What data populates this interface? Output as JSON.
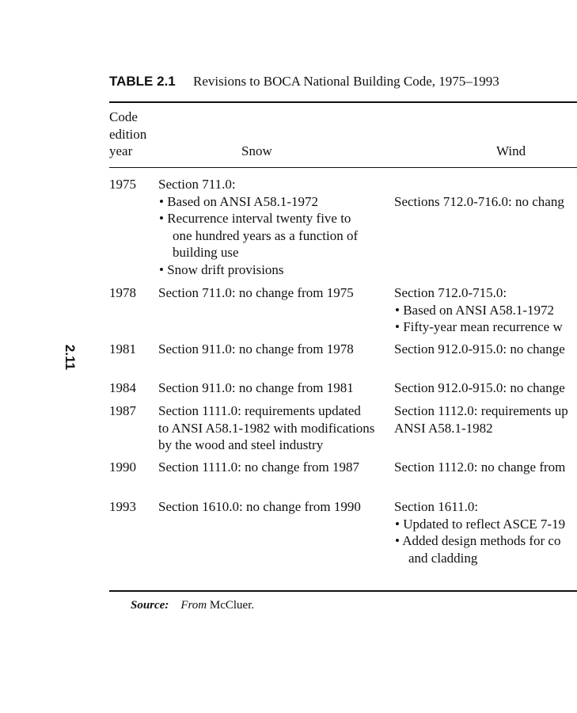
{
  "page_number": "2.11",
  "table": {
    "label": "TABLE 2.1",
    "caption": "Revisions to BOCA National Building Code, 1975–1993",
    "headers": {
      "year": [
        "Code",
        "edition",
        "year"
      ],
      "snow": "Snow",
      "wind": "Wind"
    },
    "rows": [
      {
        "year": "1975",
        "snow": [
          "Section 711.0:",
          "• Based on ANSI A58.1-1972",
          "• Recurrence interval twenty five to",
          "one hundred years as a function of",
          "building use",
          "• Snow drift provisions"
        ],
        "wind": [
          "",
          "Sections 712.0-716.0: no chang"
        ]
      },
      {
        "year": "1978",
        "snow": [
          "Section 711.0: no change from 1975"
        ],
        "wind": [
          "Section 712.0-715.0:",
          "• Based on ANSI A58.1-1972",
          "• Fifty-year mean recurrence w"
        ]
      },
      {
        "year": "1981",
        "snow": [
          "Section 911.0: no change from 1978"
        ],
        "wind": [
          "Section 912.0-915.0: no change"
        ]
      },
      {
        "year": "1984",
        "snow": [
          "Section 911.0: no change from 1981"
        ],
        "wind": [
          "Section 912.0-915.0: no change"
        ]
      },
      {
        "year": "1987",
        "snow": [
          "Section 1111.0: requirements updated",
          "to ANSI A58.1-1982 with modifications",
          "by the wood and steel industry"
        ],
        "wind": [
          "Section 1112.0: requirements up",
          "ANSI A58.1-1982"
        ]
      },
      {
        "year": "1990",
        "snow": [
          "Section 1111.0: no change from 1987"
        ],
        "wind": [
          "Section 1112.0: no change from"
        ]
      },
      {
        "year": "1993",
        "snow": [
          "Section 1610.0: no change from 1990"
        ],
        "wind": [
          "Section 1611.0:",
          "• Updated to reflect ASCE 7-19",
          "• Added design methods for co",
          "and cladding"
        ]
      }
    ],
    "source": {
      "label": "Source:",
      "prefix": "From",
      "text": "McCluer."
    }
  }
}
